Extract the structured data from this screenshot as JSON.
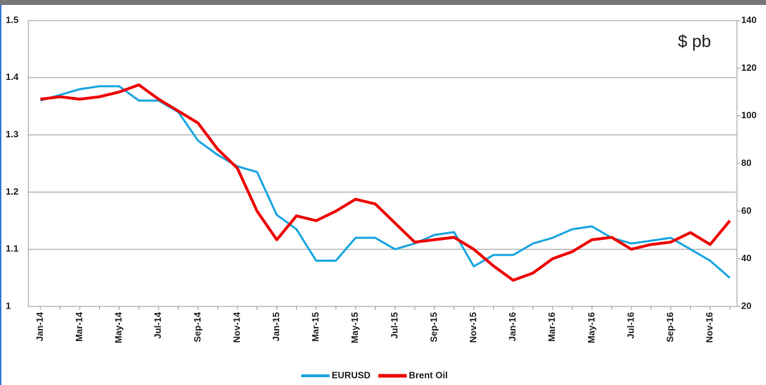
{
  "chart_data": {
    "type": "line",
    "annotation": "$ pb",
    "categories": [
      "Jan-14",
      null,
      "Mar-14",
      null,
      "May-14",
      null,
      "Jul-14",
      null,
      "Sep-14",
      null,
      "Nov-14",
      null,
      "Jan-15",
      null,
      "Mar-15",
      null,
      "May-15",
      null,
      "Jul-15",
      null,
      "Sep-15",
      null,
      "Nov-15",
      null,
      "Jan-16",
      null,
      "Mar-16",
      null,
      "May-16",
      null,
      "Jul-16",
      null,
      "Sep-16",
      null,
      "Nov-16",
      null
    ],
    "series": [
      {
        "name": "EURUSD",
        "color": "#1ea7e1",
        "values": [
          1.36,
          1.37,
          1.38,
          1.385,
          1.385,
          1.36,
          1.36,
          1.34,
          1.29,
          1.265,
          1.245,
          1.235,
          1.16,
          1.135,
          1.08,
          1.08,
          1.12,
          1.12,
          1.1,
          1.11,
          1.125,
          1.13,
          1.07,
          1.09,
          1.09,
          1.11,
          1.12,
          1.135,
          1.14,
          1.12,
          1.11,
          1.115,
          1.12,
          1.1,
          1.08,
          1.05
        ]
      },
      {
        "name": "Brent Oil",
        "color": "#ee0000",
        "axis": "y2",
        "values": [
          107,
          108,
          107,
          108,
          110,
          113,
          107,
          102,
          97,
          86,
          78,
          60,
          48,
          58,
          56,
          60,
          65,
          63,
          55,
          47,
          48,
          49,
          44,
          37,
          31,
          34,
          40,
          43,
          48,
          49,
          44,
          46,
          47,
          51,
          46,
          56
        ]
      }
    ],
    "ylim": [
      1,
      1.5
    ],
    "yticks": [
      1,
      1.1,
      1.2,
      1.3,
      1.4,
      1.5
    ],
    "y2lim": [
      20,
      140
    ],
    "y2ticks": [
      20,
      40,
      60,
      80,
      100,
      120,
      140
    ],
    "grid": true,
    "legend": "bottom"
  }
}
